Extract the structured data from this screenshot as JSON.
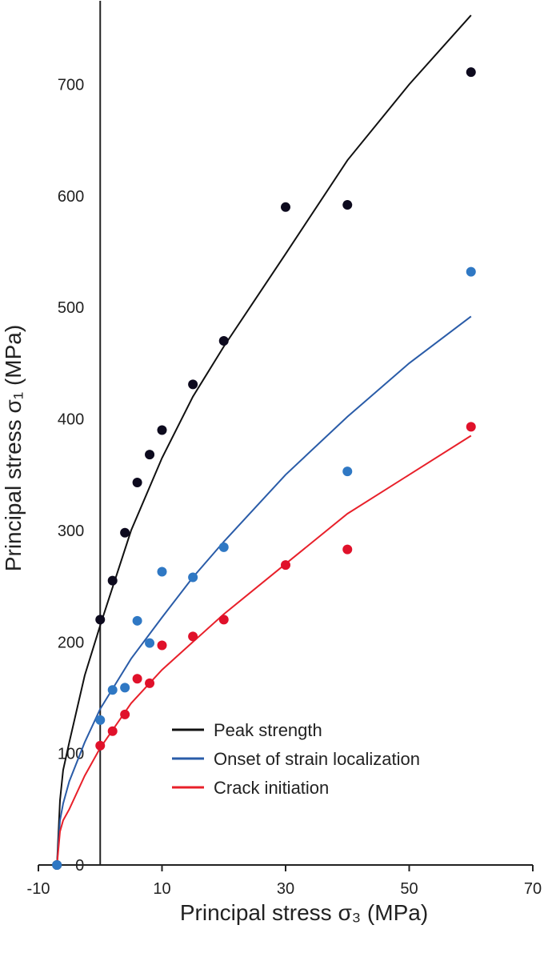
{
  "chart_data": {
    "type": "scatter",
    "xlabel": "Principal stress σ₃ (MPa)",
    "ylabel": "Principal stress σ₁ (MPa)",
    "xlim": [
      -10,
      70
    ],
    "xticks": [
      -10,
      10,
      30,
      50,
      70
    ],
    "ylim": [
      0,
      775
    ],
    "yticks": [
      0,
      100,
      200,
      300,
      400,
      500,
      600,
      700
    ],
    "legend": "lower-right",
    "series": [
      {
        "name": "Peak strength",
        "color": "#111111",
        "point_color": "#0d0a1e",
        "x": [
          -7,
          0,
          2,
          4,
          6,
          8,
          10,
          15,
          20,
          30,
          40,
          60
        ],
        "values": [
          0,
          220,
          255,
          298,
          343,
          368,
          390,
          431,
          470,
          590,
          592,
          711
        ],
        "fit": {
          "x": [
            -7,
            -6.5,
            -6,
            -5,
            -2.5,
            0,
            5,
            10,
            15,
            20,
            30,
            40,
            50,
            60
          ],
          "values": [
            0,
            58,
            85,
            110,
            170,
            215,
            300,
            365,
            420,
            465,
            548,
            632,
            700,
            762
          ]
        }
      },
      {
        "name": "Onset of strain localization",
        "color": "#2a5ca8",
        "point_color": "#2f78c4",
        "x": [
          -7,
          0,
          2,
          4,
          6,
          8,
          10,
          15,
          20,
          40,
          60
        ],
        "values": [
          0,
          130,
          157,
          159,
          219,
          199,
          263,
          258,
          285,
          353,
          532
        ],
        "fit": {
          "x": [
            -7,
            -6.5,
            -6,
            -5,
            -2.5,
            0,
            5,
            10,
            15,
            20,
            30,
            40,
            50,
            60
          ],
          "values": [
            0,
            40,
            55,
            75,
            110,
            140,
            185,
            222,
            258,
            290,
            350,
            402,
            450,
            492
          ]
        }
      },
      {
        "name": "Crack initiation",
        "color": "#e8202a",
        "point_color": "#e0112a",
        "x": [
          0,
          2,
          4,
          6,
          8,
          10,
          15,
          20,
          30,
          40,
          60
        ],
        "values": [
          107,
          120,
          135,
          167,
          163,
          197,
          205,
          220,
          269,
          283,
          393
        ],
        "fit": {
          "x": [
            -7,
            -6.5,
            -6,
            -5,
            -2.5,
            0,
            5,
            10,
            15,
            20,
            30,
            40,
            50,
            60
          ],
          "values": [
            0,
            30,
            40,
            50,
            80,
            105,
            145,
            175,
            200,
            225,
            270,
            315,
            350,
            385
          ]
        }
      }
    ]
  }
}
